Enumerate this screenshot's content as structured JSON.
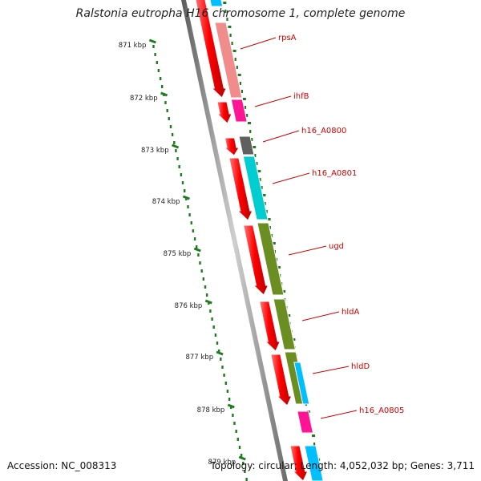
{
  "title": "Ralstonia eutropha H16 chromosome 1, complete genome",
  "footer": {
    "accession": "Accession: NC_008313",
    "topology": "Topology: circular;",
    "length": "Length: 4,052,032 bp;",
    "genes": "Genes: 3,711"
  },
  "colors": {
    "cds": "#ff0000",
    "label": "#d10000",
    "ticks": "#1e7b1e",
    "backbone": "#8c8c8c",
    "rps": "#f08080",
    "ihf": "#ff1493",
    "unknown": "#606060",
    "cyan": "#00cdd0",
    "olive": "#6b8e23",
    "sky": "#00bfff",
    "magenta": "#ff1493"
  },
  "scale": {
    "unit": "kbp",
    "labels": [
      "871 kbp",
      "872 kbp",
      "873 kbp",
      "874 kbp",
      "875 kbp",
      "876 kbp",
      "877 kbp",
      "878 kbp",
      "879 kbp"
    ]
  },
  "genes": [
    {
      "label": "rpsA",
      "color_key": "rps"
    },
    {
      "label": "ihfB",
      "color_key": "ihf"
    },
    {
      "label": "h16_A0800",
      "color_key": "unknown"
    },
    {
      "label": "h16_A0801",
      "color_key": "cyan"
    },
    {
      "label": "ugd",
      "color_key": "olive"
    },
    {
      "label": "hldA",
      "color_key": "olive"
    },
    {
      "label": "hldD",
      "color_key": "olive"
    },
    {
      "label": "h16_A0805",
      "color_key": "magenta"
    }
  ]
}
